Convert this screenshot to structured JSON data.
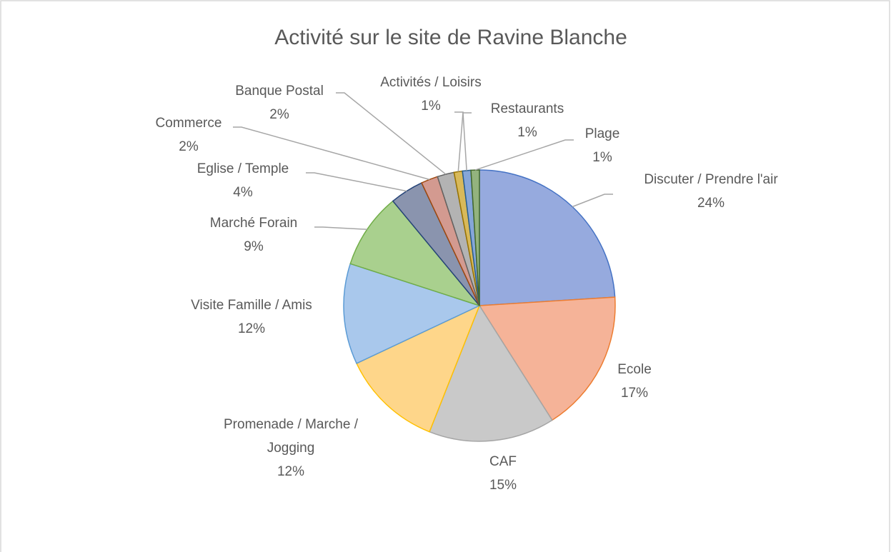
{
  "chart_data": {
    "type": "pie",
    "title": "Activité sur le site de Ravine Blanche",
    "categories": [
      "Discuter / Prendre l'air",
      "Ecole",
      "CAF",
      "Promenade / Marche / Jogging",
      "Visite Famille / Amis",
      "Marché Forain",
      "Eglise / Temple",
      "Commerce",
      "Banque Postal",
      "Activités / Loisirs",
      "Restaurants",
      "Plage"
    ],
    "values": [
      24,
      17,
      15,
      12,
      12,
      9,
      4,
      2,
      2,
      1,
      1,
      1
    ],
    "value_labels": [
      "24%",
      "17%",
      "15%",
      "12%",
      "12%",
      "9%",
      "4%",
      "2%",
      "2%",
      "1%",
      "1%",
      "1%"
    ],
    "colors": [
      "#96aade",
      "#f5b398",
      "#c9c9c9",
      "#fed68a",
      "#a9c8ec",
      "#a9d08e",
      "#8a94ae",
      "#d39a90",
      "#b3b3b3",
      "#d8b95a",
      "#86a6d8",
      "#93b37e"
    ],
    "edge_colors": [
      "#4472c4",
      "#ed7d31",
      "#a5a5a5",
      "#ffc000",
      "#5b9bd5",
      "#70ad47",
      "#264478",
      "#9e480e",
      "#636363",
      "#997300",
      "#255e91",
      "#43682b"
    ]
  }
}
